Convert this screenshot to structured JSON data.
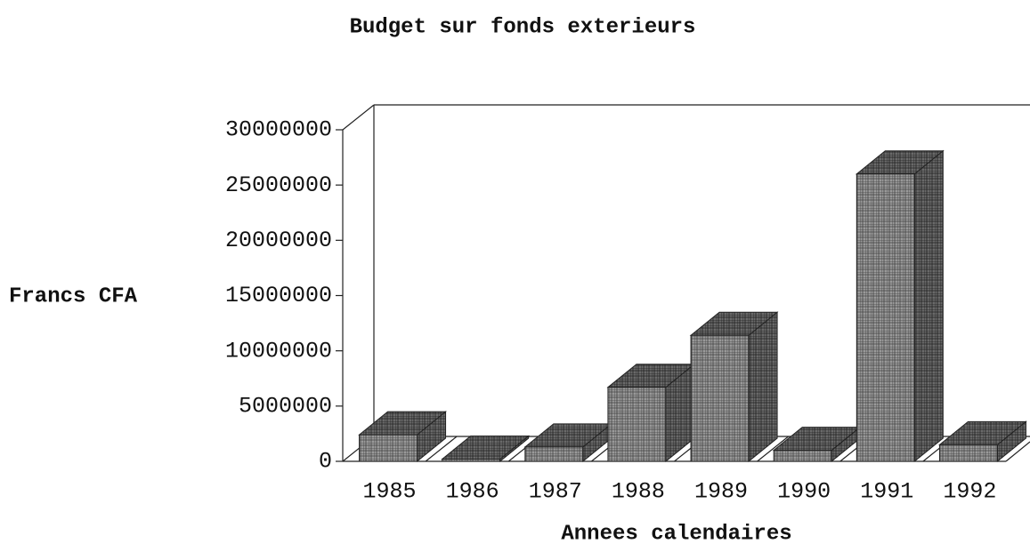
{
  "chart_data": {
    "type": "bar3d",
    "title": "Budget sur fonds exterieurs",
    "y_label": "Francs CFA",
    "x_label": "Annees calendaires",
    "categories": [
      "1985",
      "1986",
      "1987",
      "1988",
      "1989",
      "1990",
      "1991",
      "1992"
    ],
    "values": [
      2400000,
      200000,
      1300000,
      6700000,
      11400000,
      1000000,
      26000000,
      1500000
    ],
    "color": "#8a8a8a",
    "ylim": [
      0,
      30000000
    ],
    "yticks": [
      0,
      5000000,
      10000000,
      15000000,
      20000000,
      25000000,
      30000000
    ],
    "grid": false
  }
}
